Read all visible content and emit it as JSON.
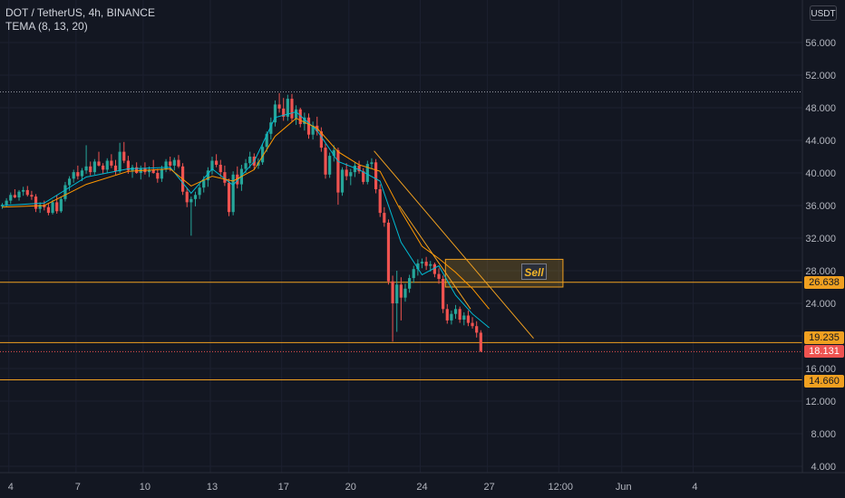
{
  "header": {
    "symbol_line": "DOT / TetherUS, 4h, BINANCE",
    "indicator_line": "TEMA (8, 13, 20)",
    "currency": "USDT"
  },
  "colors": {
    "background": "#131722",
    "up_candle": "#26a69a",
    "down_candle": "#ef5350",
    "level_line": "#f0a020",
    "tema_fast": "#00bcd4",
    "tema_slow": "#ff9800",
    "sell_box_fill": "#f0b42933"
  },
  "annotations": {
    "sell_label": "Sell",
    "tags": {
      "resistance": "26.638",
      "support_a": "19.235",
      "last_price": "18.131",
      "support_b": "14.660"
    }
  },
  "chart_data": {
    "type": "candlestick",
    "y_axis": {
      "range": [
        3.0,
        60.0
      ],
      "ticks": [
        "56.000",
        "52.000",
        "48.000",
        "44.000",
        "40.000",
        "36.000",
        "32.000",
        "28.000",
        "24.000",
        "20.000",
        "16.000",
        "12.000",
        "8.000",
        "4.000"
      ],
      "tick_values": [
        56,
        52,
        48,
        44,
        40,
        36,
        32,
        28,
        24,
        20,
        16,
        12,
        8,
        4
      ],
      "position": "right"
    },
    "x_axis": {
      "ticks": [
        "4",
        "7",
        "10",
        "13",
        "17",
        "20",
        "24",
        "27",
        "12:00",
        "Jun",
        "4"
      ],
      "tick_index": [
        2,
        18,
        34,
        50,
        67,
        83,
        100,
        116,
        133,
        148,
        165
      ]
    },
    "horizontal_levels": [
      {
        "value": 50.0,
        "style": "dotted",
        "color": "#9598a1"
      },
      {
        "value": 26.638,
        "style": "solid",
        "color": "#f0a020"
      },
      {
        "value": 19.235,
        "style": "solid",
        "color": "#f0a020"
      },
      {
        "value": 18.131,
        "style": "dotted",
        "color": "#ef5350"
      },
      {
        "value": 14.66,
        "style": "solid",
        "color": "#f0a020"
      }
    ],
    "trendlines": [
      {
        "from": [
          89,
          42.7
        ],
        "to": [
          127,
          19.7
        ]
      },
      {
        "from": [
          95,
          36.0
        ],
        "to": [
          112,
          23.3
        ]
      }
    ],
    "sell_zone": {
      "from_index": 106,
      "to_index": 134,
      "y_top": 29.4,
      "y_bottom": 26.0
    },
    "candles": [
      [
        35.9,
        36.3,
        35.6,
        36.1
      ],
      [
        36.1,
        36.9,
        35.8,
        36.6
      ],
      [
        36.6,
        37.6,
        36.2,
        37.3
      ],
      [
        37.3,
        38.0,
        36.9,
        37.0
      ],
      [
        37.0,
        37.9,
        36.6,
        37.7
      ],
      [
        37.7,
        38.3,
        37.2,
        37.9
      ],
      [
        37.9,
        38.4,
        37.1,
        37.3
      ],
      [
        37.3,
        37.8,
        36.7,
        37.1
      ],
      [
        37.1,
        37.4,
        35.2,
        35.6
      ],
      [
        35.6,
        36.4,
        35.1,
        36.1
      ],
      [
        36.1,
        36.6,
        35.4,
        35.8
      ],
      [
        35.8,
        36.2,
        34.8,
        35.1
      ],
      [
        35.1,
        36.7,
        34.9,
        36.4
      ],
      [
        36.4,
        37.3,
        35.0,
        35.3
      ],
      [
        35.3,
        37.1,
        35.1,
        36.8
      ],
      [
        36.8,
        38.9,
        36.5,
        38.5
      ],
      [
        38.5,
        39.6,
        37.8,
        39.3
      ],
      [
        39.3,
        40.4,
        38.8,
        40.1
      ],
      [
        40.1,
        40.9,
        39.2,
        39.6
      ],
      [
        39.6,
        40.6,
        39.0,
        40.3
      ],
      [
        40.3,
        43.4,
        39.9,
        40.8
      ],
      [
        40.8,
        41.4,
        39.7,
        40.1
      ],
      [
        40.1,
        41.7,
        39.8,
        41.4
      ],
      [
        41.4,
        42.6,
        40.8,
        40.9
      ],
      [
        40.9,
        41.2,
        39.9,
        40.4
      ],
      [
        40.4,
        41.8,
        40.0,
        41.5
      ],
      [
        41.5,
        42.3,
        40.6,
        40.9
      ],
      [
        40.9,
        41.6,
        39.8,
        40.2
      ],
      [
        40.2,
        43.7,
        40.0,
        42.6
      ],
      [
        42.6,
        43.8,
        41.2,
        41.5
      ],
      [
        41.5,
        42.1,
        39.9,
        40.3
      ],
      [
        40.3,
        41.0,
        39.4,
        40.7
      ],
      [
        40.7,
        41.3,
        39.9,
        40.0
      ],
      [
        40.0,
        40.9,
        39.2,
        40.6
      ],
      [
        40.6,
        41.3,
        39.8,
        40.1
      ],
      [
        40.1,
        40.8,
        39.5,
        40.4
      ],
      [
        40.4,
        41.6,
        39.9,
        40.0
      ],
      [
        40.0,
        40.5,
        38.8,
        39.3
      ],
      [
        39.3,
        40.9,
        38.9,
        40.5
      ],
      [
        40.5,
        41.7,
        40.1,
        41.4
      ],
      [
        41.4,
        42.0,
        40.2,
        40.9
      ],
      [
        40.9,
        41.9,
        40.3,
        41.6
      ],
      [
        41.6,
        42.2,
        40.6,
        40.8
      ],
      [
        40.8,
        41.2,
        37.3,
        37.7
      ],
      [
        37.7,
        38.2,
        35.8,
        36.4
      ],
      [
        36.4,
        37.1,
        32.3,
        36.8
      ],
      [
        36.8,
        37.7,
        35.9,
        37.3
      ],
      [
        37.3,
        38.6,
        36.8,
        38.2
      ],
      [
        38.2,
        39.6,
        37.6,
        39.1
      ],
      [
        39.1,
        40.7,
        38.3,
        40.3
      ],
      [
        40.3,
        42.0,
        39.8,
        41.5
      ],
      [
        41.5,
        42.3,
        40.7,
        41.0
      ],
      [
        41.0,
        41.6,
        39.5,
        40.1
      ],
      [
        40.1,
        40.9,
        38.4,
        38.8
      ],
      [
        38.8,
        39.3,
        34.7,
        35.2
      ],
      [
        35.2,
        40.2,
        34.8,
        39.8
      ],
      [
        39.8,
        40.8,
        38.1,
        38.6
      ],
      [
        38.6,
        41.0,
        37.8,
        40.5
      ],
      [
        40.5,
        41.7,
        40.0,
        41.2
      ],
      [
        41.2,
        42.6,
        40.6,
        42.0
      ],
      [
        42.0,
        42.4,
        40.4,
        40.9
      ],
      [
        40.9,
        41.8,
        40.5,
        41.3
      ],
      [
        41.3,
        43.6,
        41.0,
        43.2
      ],
      [
        43.2,
        45.1,
        42.6,
        44.8
      ],
      [
        44.8,
        46.8,
        44.1,
        46.2
      ],
      [
        46.2,
        48.9,
        45.7,
        48.4
      ],
      [
        48.4,
        49.8,
        47.4,
        47.9
      ],
      [
        47.9,
        49.2,
        46.4,
        46.9
      ],
      [
        46.9,
        49.6,
        46.4,
        49.1
      ],
      [
        49.1,
        49.7,
        46.3,
        46.7
      ],
      [
        46.7,
        48.3,
        45.9,
        47.8
      ],
      [
        47.8,
        48.0,
        45.6,
        46.0
      ],
      [
        46.0,
        47.4,
        45.2,
        46.8
      ],
      [
        46.8,
        47.3,
        44.2,
        44.7
      ],
      [
        44.7,
        46.3,
        44.1,
        45.8
      ],
      [
        45.8,
        46.9,
        44.6,
        45.1
      ],
      [
        45.1,
        45.6,
        42.6,
        43.1
      ],
      [
        43.1,
        43.6,
        39.3,
        39.8
      ],
      [
        39.8,
        42.5,
        39.4,
        42.1
      ],
      [
        42.1,
        43.4,
        41.4,
        42.8
      ],
      [
        42.8,
        43.1,
        36.1,
        37.6
      ],
      [
        37.6,
        40.7,
        37.2,
        40.4
      ],
      [
        40.4,
        41.2,
        39.1,
        39.6
      ],
      [
        39.6,
        40.5,
        38.5,
        40.1
      ],
      [
        40.1,
        41.3,
        39.5,
        40.9
      ],
      [
        40.9,
        41.5,
        39.9,
        40.2
      ],
      [
        40.2,
        40.6,
        38.6,
        38.9
      ],
      [
        38.9,
        41.5,
        38.6,
        41.1
      ],
      [
        41.1,
        41.8,
        40.5,
        41.3
      ],
      [
        41.3,
        41.7,
        37.5,
        38.0
      ],
      [
        38.0,
        38.6,
        34.6,
        35.1
      ],
      [
        35.1,
        35.8,
        33.4,
        33.9
      ],
      [
        33.9,
        34.3,
        26.3,
        26.7
      ],
      [
        26.7,
        27.4,
        19.3,
        24.0
      ],
      [
        24.0,
        28.0,
        20.5,
        26.3
      ],
      [
        26.3,
        27.2,
        21.9,
        24.7
      ],
      [
        24.7,
        26.4,
        24.2,
        25.8
      ],
      [
        25.8,
        27.5,
        25.3,
        27.1
      ],
      [
        27.1,
        28.6,
        26.5,
        28.2
      ],
      [
        28.2,
        29.4,
        27.4,
        28.9
      ],
      [
        28.9,
        29.5,
        28.3,
        29.1
      ],
      [
        29.1,
        29.7,
        28.1,
        28.6
      ],
      [
        28.6,
        29.2,
        27.9,
        28.8
      ],
      [
        28.8,
        29.0,
        27.2,
        27.6
      ],
      [
        27.6,
        28.3,
        26.4,
        27.0
      ],
      [
        27.0,
        27.4,
        22.8,
        23.3
      ],
      [
        23.3,
        23.9,
        21.5,
        21.9
      ],
      [
        21.9,
        23.1,
        21.4,
        22.7
      ],
      [
        22.7,
        23.8,
        22.1,
        23.3
      ],
      [
        23.3,
        23.6,
        21.6,
        22.0
      ],
      [
        22.0,
        22.9,
        21.3,
        22.5
      ],
      [
        22.5,
        23.1,
        21.2,
        21.6
      ],
      [
        21.6,
        22.3,
        20.9,
        21.2
      ],
      [
        21.2,
        21.8,
        19.8,
        20.4
      ],
      [
        20.4,
        20.7,
        18.0,
        18.131
      ]
    ],
    "tema_series": [
      {
        "color": "#00bcd4",
        "points": [
          [
            0,
            36.0
          ],
          [
            10,
            36.3
          ],
          [
            20,
            39.5
          ],
          [
            30,
            40.5
          ],
          [
            40,
            40.7
          ],
          [
            45,
            37.5
          ],
          [
            50,
            40.5
          ],
          [
            55,
            38.5
          ],
          [
            60,
            41.4
          ],
          [
            65,
            46.8
          ],
          [
            70,
            47.5
          ],
          [
            75,
            45.2
          ],
          [
            80,
            41.4
          ],
          [
            85,
            40.4
          ],
          [
            90,
            39.0
          ],
          [
            95,
            31.5
          ],
          [
            100,
            27.5
          ],
          [
            104,
            28.6
          ],
          [
            108,
            25.0
          ],
          [
            112,
            22.7
          ],
          [
            116,
            21.0
          ]
        ]
      },
      {
        "color": "#ff9800",
        "points": [
          [
            0,
            35.8
          ],
          [
            10,
            36.0
          ],
          [
            20,
            38.6
          ],
          [
            30,
            40.2
          ],
          [
            40,
            40.5
          ],
          [
            45,
            38.4
          ],
          [
            50,
            39.6
          ],
          [
            55,
            39.0
          ],
          [
            60,
            40.4
          ],
          [
            65,
            44.5
          ],
          [
            70,
            46.7
          ],
          [
            75,
            45.5
          ],
          [
            80,
            42.6
          ],
          [
            85,
            41.0
          ],
          [
            90,
            40.2
          ],
          [
            95,
            35.3
          ],
          [
            100,
            31.0
          ],
          [
            104,
            29.5
          ],
          [
            108,
            27.8
          ],
          [
            112,
            25.8
          ],
          [
            116,
            23.3
          ]
        ]
      }
    ]
  }
}
